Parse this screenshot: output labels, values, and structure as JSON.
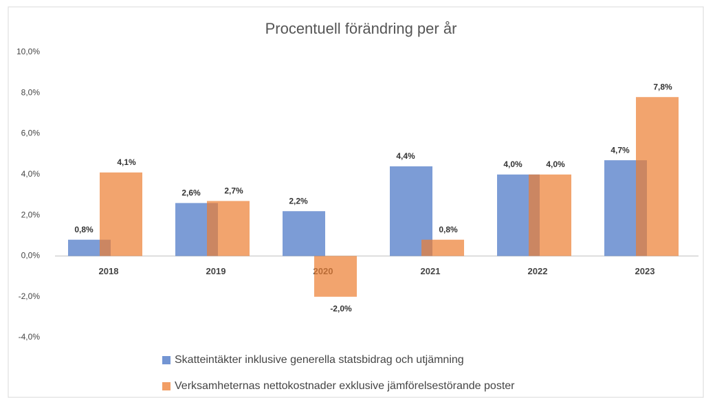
{
  "chart_data": {
    "type": "bar",
    "title": "Procentuell förändring per år",
    "categories": [
      "2018",
      "2019",
      "2020",
      "2021",
      "2022",
      "2023"
    ],
    "series": [
      {
        "name": "Skatteintäkter inklusive generella statsbidrag och utjämning",
        "color": "#4472c4",
        "values": [
          0.8,
          2.6,
          2.2,
          4.4,
          4.0,
          4.7
        ],
        "value_labels": [
          "0,8%",
          "2,6%",
          "2,2%",
          "4,4%",
          "4,0%",
          "4,7%"
        ]
      },
      {
        "name": "Verksamheternas nettokostnader exklusive jämförelsestörande poster",
        "color": "#ed7d31",
        "values": [
          4.1,
          2.7,
          -2.0,
          0.8,
          4.0,
          7.8
        ],
        "value_labels": [
          "4,1%",
          "2,7%",
          "-2,0%",
          "0,8%",
          "4,0%",
          "7,8%"
        ]
      }
    ],
    "ylim": [
      -4,
      10
    ],
    "yticks": [
      {
        "value": -4,
        "label": "-4,0%"
      },
      {
        "value": -2,
        "label": "-2,0%"
      },
      {
        "value": 0,
        "label": "0,0%"
      },
      {
        "value": 2,
        "label": "2,0%"
      },
      {
        "value": 4,
        "label": "4,0%"
      },
      {
        "value": 6,
        "label": "6,0%"
      },
      {
        "value": 8,
        "label": "8,0%"
      },
      {
        "value": 10,
        "label": "10,0%"
      }
    ],
    "grid": false,
    "legend": "bottom"
  }
}
